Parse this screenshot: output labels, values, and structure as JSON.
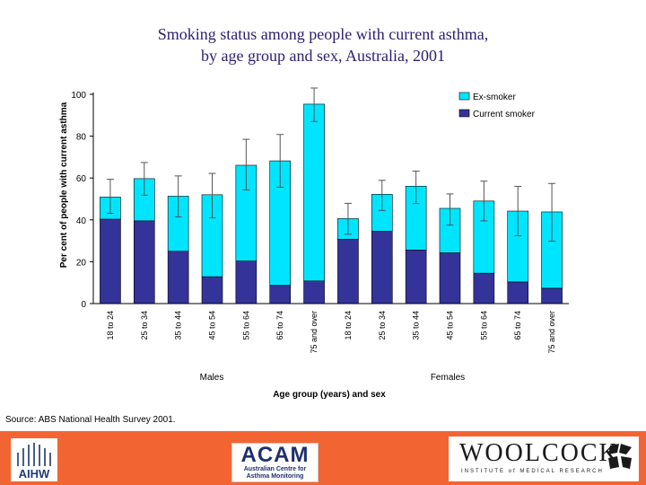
{
  "chart_data": {
    "type": "bar",
    "stacked": true,
    "title_lines": [
      "Smoking status among people with current asthma,",
      "by age group and sex, Australia, 2001"
    ],
    "ylabel": "Per cent of people with current asthma",
    "xlabel": "Age group (years) and sex",
    "ylim": [
      0,
      100
    ],
    "yticks": [
      0,
      20,
      40,
      60,
      80,
      100
    ],
    "grid": false,
    "legend_position": "top-right",
    "groups": [
      "Males",
      "Females"
    ],
    "categories": [
      "18 to 24",
      "25 to 34",
      "35 to 44",
      "45 to 54",
      "55 to 64",
      "65 to 74",
      "75 and over",
      "18 to 24",
      "25 to 34",
      "35 to 44",
      "45 to 54",
      "55 to 64",
      "65 to 74",
      "75 and over"
    ],
    "category_group": [
      0,
      0,
      0,
      0,
      0,
      0,
      0,
      1,
      1,
      1,
      1,
      1,
      1,
      1
    ],
    "series": [
      {
        "name": "Current smoker",
        "color": "#333399",
        "values": [
          40.3,
          39.5,
          25.0,
          12.8,
          20.3,
          8.7,
          10.8,
          30.7,
          34.5,
          25.6,
          24.2,
          14.5,
          10.3,
          7.3
        ]
      },
      {
        "name": "Ex-smoker",
        "color": "#00e5ff",
        "values": [
          10.6,
          20.2,
          26.3,
          39.2,
          45.8,
          59.5,
          84.5,
          9.9,
          17.7,
          30.5,
          21.3,
          34.5,
          33.9,
          36.5
        ]
      }
    ],
    "error_bars": {
      "low": [
        43.1,
        51.8,
        41.4,
        41.0,
        54.3,
        55.6,
        87.0,
        33.1,
        44.5,
        47.8,
        37.5,
        39.5,
        32.4,
        29.8
      ],
      "high": [
        59.4,
        67.4,
        61.0,
        62.2,
        78.5,
        80.8,
        103.0,
        47.9,
        58.9,
        63.3,
        52.4,
        58.5,
        56.0,
        57.4
      ]
    },
    "colors": {
      "current": "#333399",
      "ex": "#00e5ff",
      "axis": "#000000"
    }
  },
  "source_note": "Source: ABS National Health Survey 2001.",
  "footer": {
    "aihw_label": "AIHW",
    "acam_big": "ACAM",
    "acam_small_1": "Australian Centre for",
    "acam_small_2": "Asthma Monitoring",
    "woolcock_big": "WOOLCOCK",
    "woolcock_small": "INSTITUTE of MEDICAL RESEARCH",
    "background": "#f26532"
  }
}
